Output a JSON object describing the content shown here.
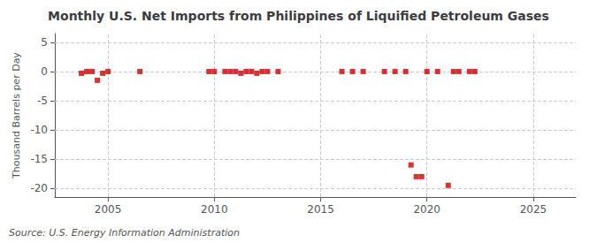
{
  "chart_data": {
    "type": "scatter",
    "title": "Monthly U.S. Net Imports from Philippines of Liquified Petroleum Gases",
    "ylabel": "Thousand Barrels per Day",
    "annotation": "Source: U.S. Energy Information Administration",
    "x": [
      2003.75,
      2004.0,
      2004.25,
      2004.5,
      2004.75,
      2005.0,
      2006.5,
      2009.75,
      2010.0,
      2010.5,
      2010.75,
      2011.0,
      2011.25,
      2011.5,
      2011.75,
      2012.0,
      2012.25,
      2012.5,
      2013.0,
      2016.0,
      2016.5,
      2017.0,
      2018.0,
      2018.5,
      2019.0,
      2019.25,
      2019.5,
      2019.75,
      2020.0,
      2020.5,
      2021.0,
      2021.25,
      2021.5,
      2022.0,
      2022.25
    ],
    "values": [
      -0.3,
      0.0,
      0.0,
      -1.5,
      -0.3,
      0.0,
      0.0,
      0.0,
      0.0,
      0.0,
      0.0,
      0.0,
      -0.3,
      0.0,
      0.0,
      -0.3,
      0.0,
      0.0,
      0.0,
      0.0,
      0.0,
      0.0,
      0.0,
      0.0,
      0.0,
      -16.0,
      -18.0,
      -18.0,
      0.0,
      0.0,
      -19.5,
      0.0,
      0.0,
      0.0,
      0.0
    ],
    "color": "#cc0000",
    "marker": "square",
    "xlim": [
      2002.5,
      2027
    ],
    "xticks": [
      2005,
      2010,
      2015,
      2020,
      2025
    ],
    "ylim": [
      -21.5,
      6.5
    ],
    "yticks": [
      5,
      0,
      -5,
      -10,
      -15,
      -20
    ],
    "grid": true
  }
}
